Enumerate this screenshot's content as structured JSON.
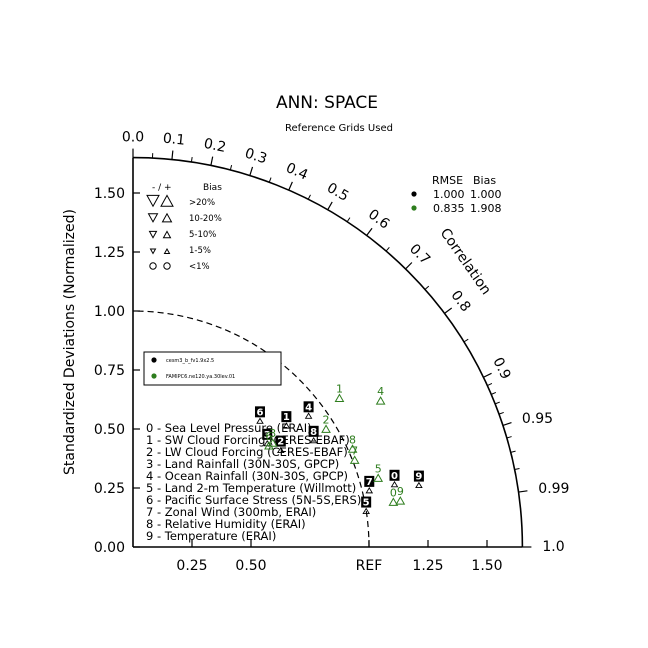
{
  "colors": {
    "case1": "#000000",
    "case2": "#2e7d1e",
    "axis": "#000000"
  },
  "chart_data": {
    "type": "scatter",
    "subtype": "taylor-diagram",
    "title": "ANN: SPACE",
    "subtitle": "Reference Grids Used",
    "ylabel": "Standardized Deviations (Normalized)",
    "arc_label": "Correlation",
    "ref_label": "REF",
    "x_ticks": [
      "0.25",
      "0.50",
      "REF",
      "1.25",
      "1.50"
    ],
    "y_ticks": [
      "0.00",
      "0.25",
      "0.50",
      "0.75",
      "1.00",
      "1.25",
      "1.50"
    ],
    "corr_ticks": [
      "0.0",
      "0.1",
      "0.2",
      "0.3",
      "0.4",
      "0.5",
      "0.6",
      "0.7",
      "0.8",
      "0.9",
      "0.95",
      "0.99",
      "1.0"
    ],
    "xlim": [
      0,
      1.65
    ],
    "ylim": [
      0,
      1.65
    ],
    "bias_legend": {
      "header": "-  /  +",
      "bias_label": "Bias",
      "rows": [
        ">20%",
        "10-20%",
        "5-10%",
        "1-5%",
        "<1%"
      ]
    },
    "rmse_table": {
      "headers": [
        "RMSE",
        "Bias"
      ],
      "rows": [
        {
          "rmse": "1.000",
          "bias": "1.000"
        },
        {
          "rmse": "0.835",
          "bias": "1.908"
        }
      ]
    },
    "series": [
      {
        "name": "cesm3_b_fv1.9x2.5",
        "points": [
          {
            "id": "0",
            "std": 1.14,
            "corr": 0.972
          },
          {
            "id": "1",
            "std": 0.83,
            "corr": 0.783
          },
          {
            "id": "2",
            "std": 0.75,
            "corr": 0.835
          },
          {
            "id": "3",
            "std": 0.72,
            "corr": 0.79
          },
          {
            "id": "4",
            "std": 0.93,
            "corr": 0.8
          },
          {
            "id": "5",
            "std": 1.0,
            "corr": 0.988
          },
          {
            "id": "6",
            "std": 0.76,
            "corr": 0.708
          },
          {
            "id": "7",
            "std": 1.03,
            "corr": 0.972
          },
          {
            "id": "8",
            "std": 0.89,
            "corr": 0.86
          },
          {
            "id": "9",
            "std": 1.24,
            "corr": 0.977
          }
        ]
      },
      {
        "name": "FAMIPC6.ne120.ya.30lev.01",
        "points": [
          {
            "id": "0",
            "std": 1.12,
            "corr": 0.985
          },
          {
            "id": "1",
            "std": 1.08,
            "corr": 0.81
          },
          {
            "id": "2",
            "std": 0.96,
            "corr": 0.852
          },
          {
            "id": "3",
            "std": 0.74,
            "corr": 0.8
          },
          {
            "id": "4",
            "std": 1.22,
            "corr": 0.86
          },
          {
            "id": "5",
            "std": 1.08,
            "corr": 0.962
          },
          {
            "id": "6",
            "std": 0.72,
            "corr": 0.8
          },
          {
            "id": "7",
            "std": 1.01,
            "corr": 0.93
          },
          {
            "id": "8",
            "std": 1.02,
            "corr": 0.912
          },
          {
            "id": "9",
            "std": 1.15,
            "corr": 0.985
          }
        ]
      }
    ],
    "variables": [
      "0 - Sea Level Pressure (ERAI)",
      "1 - SW Cloud Forcing (CERES-EBAF)",
      "2 - LW Cloud Forcing (CERES-EBAF)",
      "3 - Land Rainfall (30N-30S, GPCP)",
      "4 - Ocean Rainfall (30N-30S, GPCP)",
      "5 - Land 2-m Temperature (Willmott)",
      "6 - Pacific Surface Stress (5N-5S,ERS)",
      "7 - Zonal Wind (300mb, ERAI)",
      "8 - Relative Humidity (ERAI)",
      "9 - Temperature (ERAI)"
    ]
  }
}
